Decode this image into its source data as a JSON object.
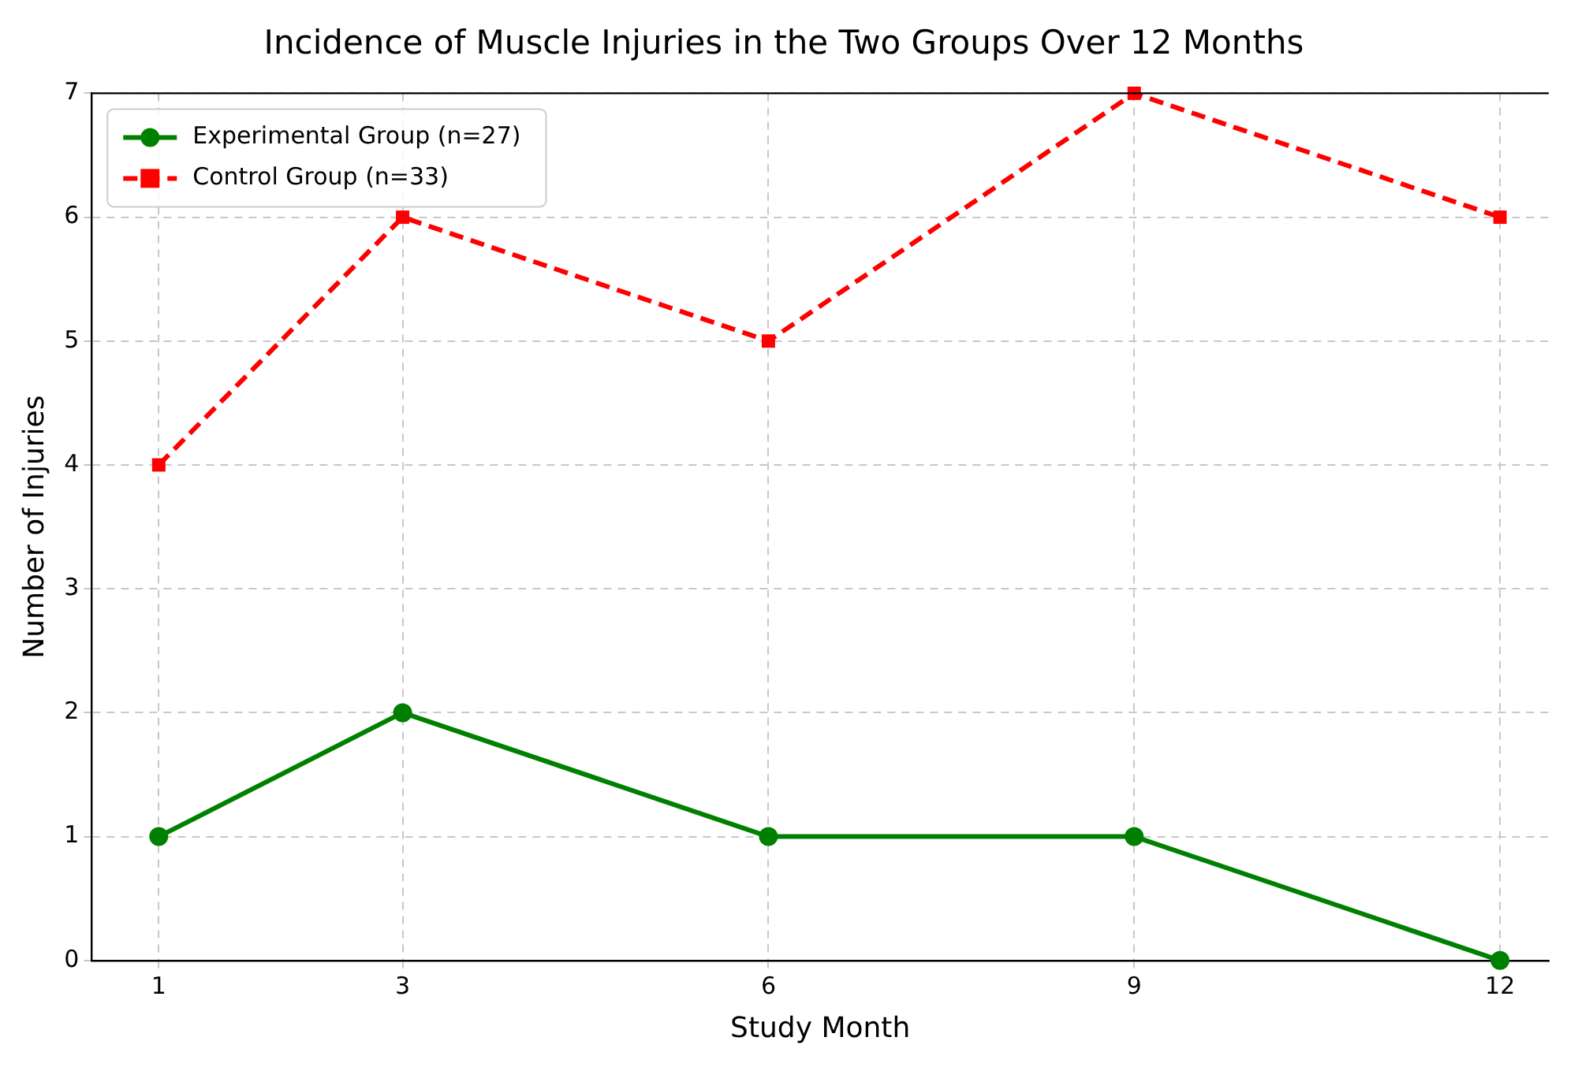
{
  "chart_data": {
    "type": "line",
    "title": "Incidence of Muscle Injuries in the Two Groups Over 12 Months",
    "xlabel": "Study Month",
    "ylabel": "Number of Injuries",
    "x": [
      1,
      3,
      6,
      9,
      12
    ],
    "series": [
      {
        "name": "Experimental Group (n=27)",
        "color": "#008000",
        "values": [
          1,
          2,
          1,
          1,
          0
        ],
        "marker": "circle",
        "line_style": "solid"
      },
      {
        "name": "Control Group (n=33)",
        "color": "#ff0000",
        "values": [
          4,
          6,
          5,
          7,
          6
        ],
        "marker": "square",
        "line_style": "dashed"
      }
    ],
    "xlim": [
      0.45,
      12.4
    ],
    "xticks": [
      1,
      3,
      6,
      9,
      12
    ],
    "ylim": [
      0,
      7
    ],
    "yticks": [
      0,
      1,
      2,
      3,
      4,
      5,
      6,
      7
    ],
    "grid": true,
    "legend": "top left"
  }
}
